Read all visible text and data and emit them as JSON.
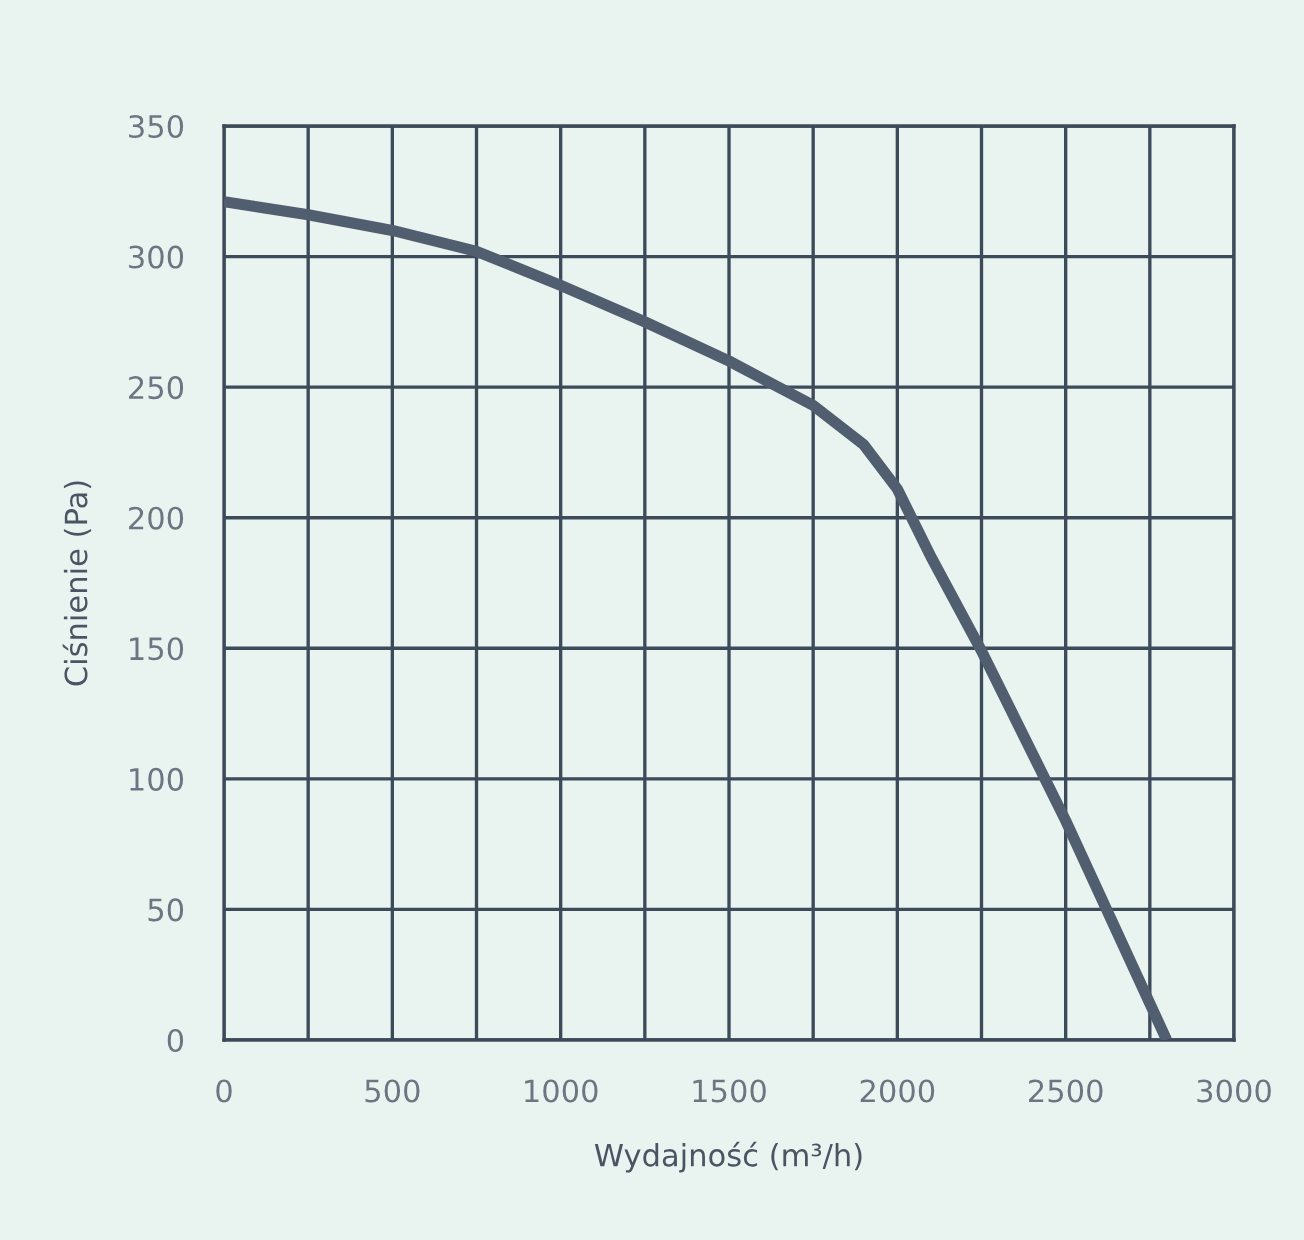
{
  "chart_data": {
    "type": "line",
    "xlabel": "Wydajność (m³/h)",
    "ylabel": "Ciśnienie (Pa)",
    "series": [
      {
        "color": "#515e6f",
        "x": [
          0,
          250,
          500,
          750,
          1000,
          1250,
          1500,
          1750,
          1900,
          2000,
          2100,
          2250,
          2500,
          2800
        ],
        "values": [
          321,
          316,
          310,
          302,
          289,
          275,
          260,
          243,
          228,
          211,
          185,
          149,
          84,
          0
        ]
      }
    ],
    "xlim": [
      0,
      3000
    ],
    "xticks": [
      0,
      500,
      1000,
      1500,
      2000,
      2500,
      3000
    ],
    "ylim": [
      0,
      350
    ],
    "yticks": [
      0,
      50,
      100,
      150,
      200,
      250,
      300,
      350
    ],
    "grid": true,
    "marker": "none",
    "line_style": "solid"
  }
}
